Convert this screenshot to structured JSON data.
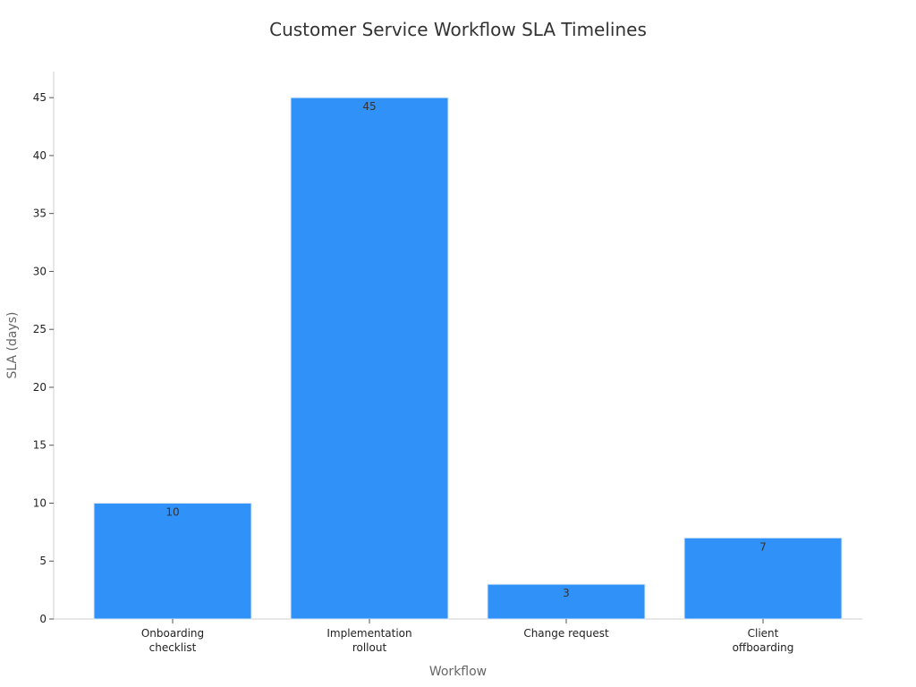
{
  "chart_data": {
    "type": "bar",
    "title": "Customer Service Workflow SLA Timelines",
    "xlabel": "Workflow",
    "ylabel": "SLA (days)",
    "categories": [
      [
        "Onboarding",
        "checklist"
      ],
      [
        "Implementation",
        "rollout"
      ],
      [
        "Change request"
      ],
      [
        "Client",
        "offboarding"
      ]
    ],
    "values": [
      10,
      45,
      3,
      7
    ],
    "ylim": [
      0,
      47.25
    ],
    "yticks": [
      0,
      5,
      10,
      15,
      20,
      25,
      30,
      35,
      40,
      45
    ],
    "bar_color": "#3092f8",
    "bar_edge_color": "#d9e8f6",
    "grid": false,
    "legend": "none"
  }
}
